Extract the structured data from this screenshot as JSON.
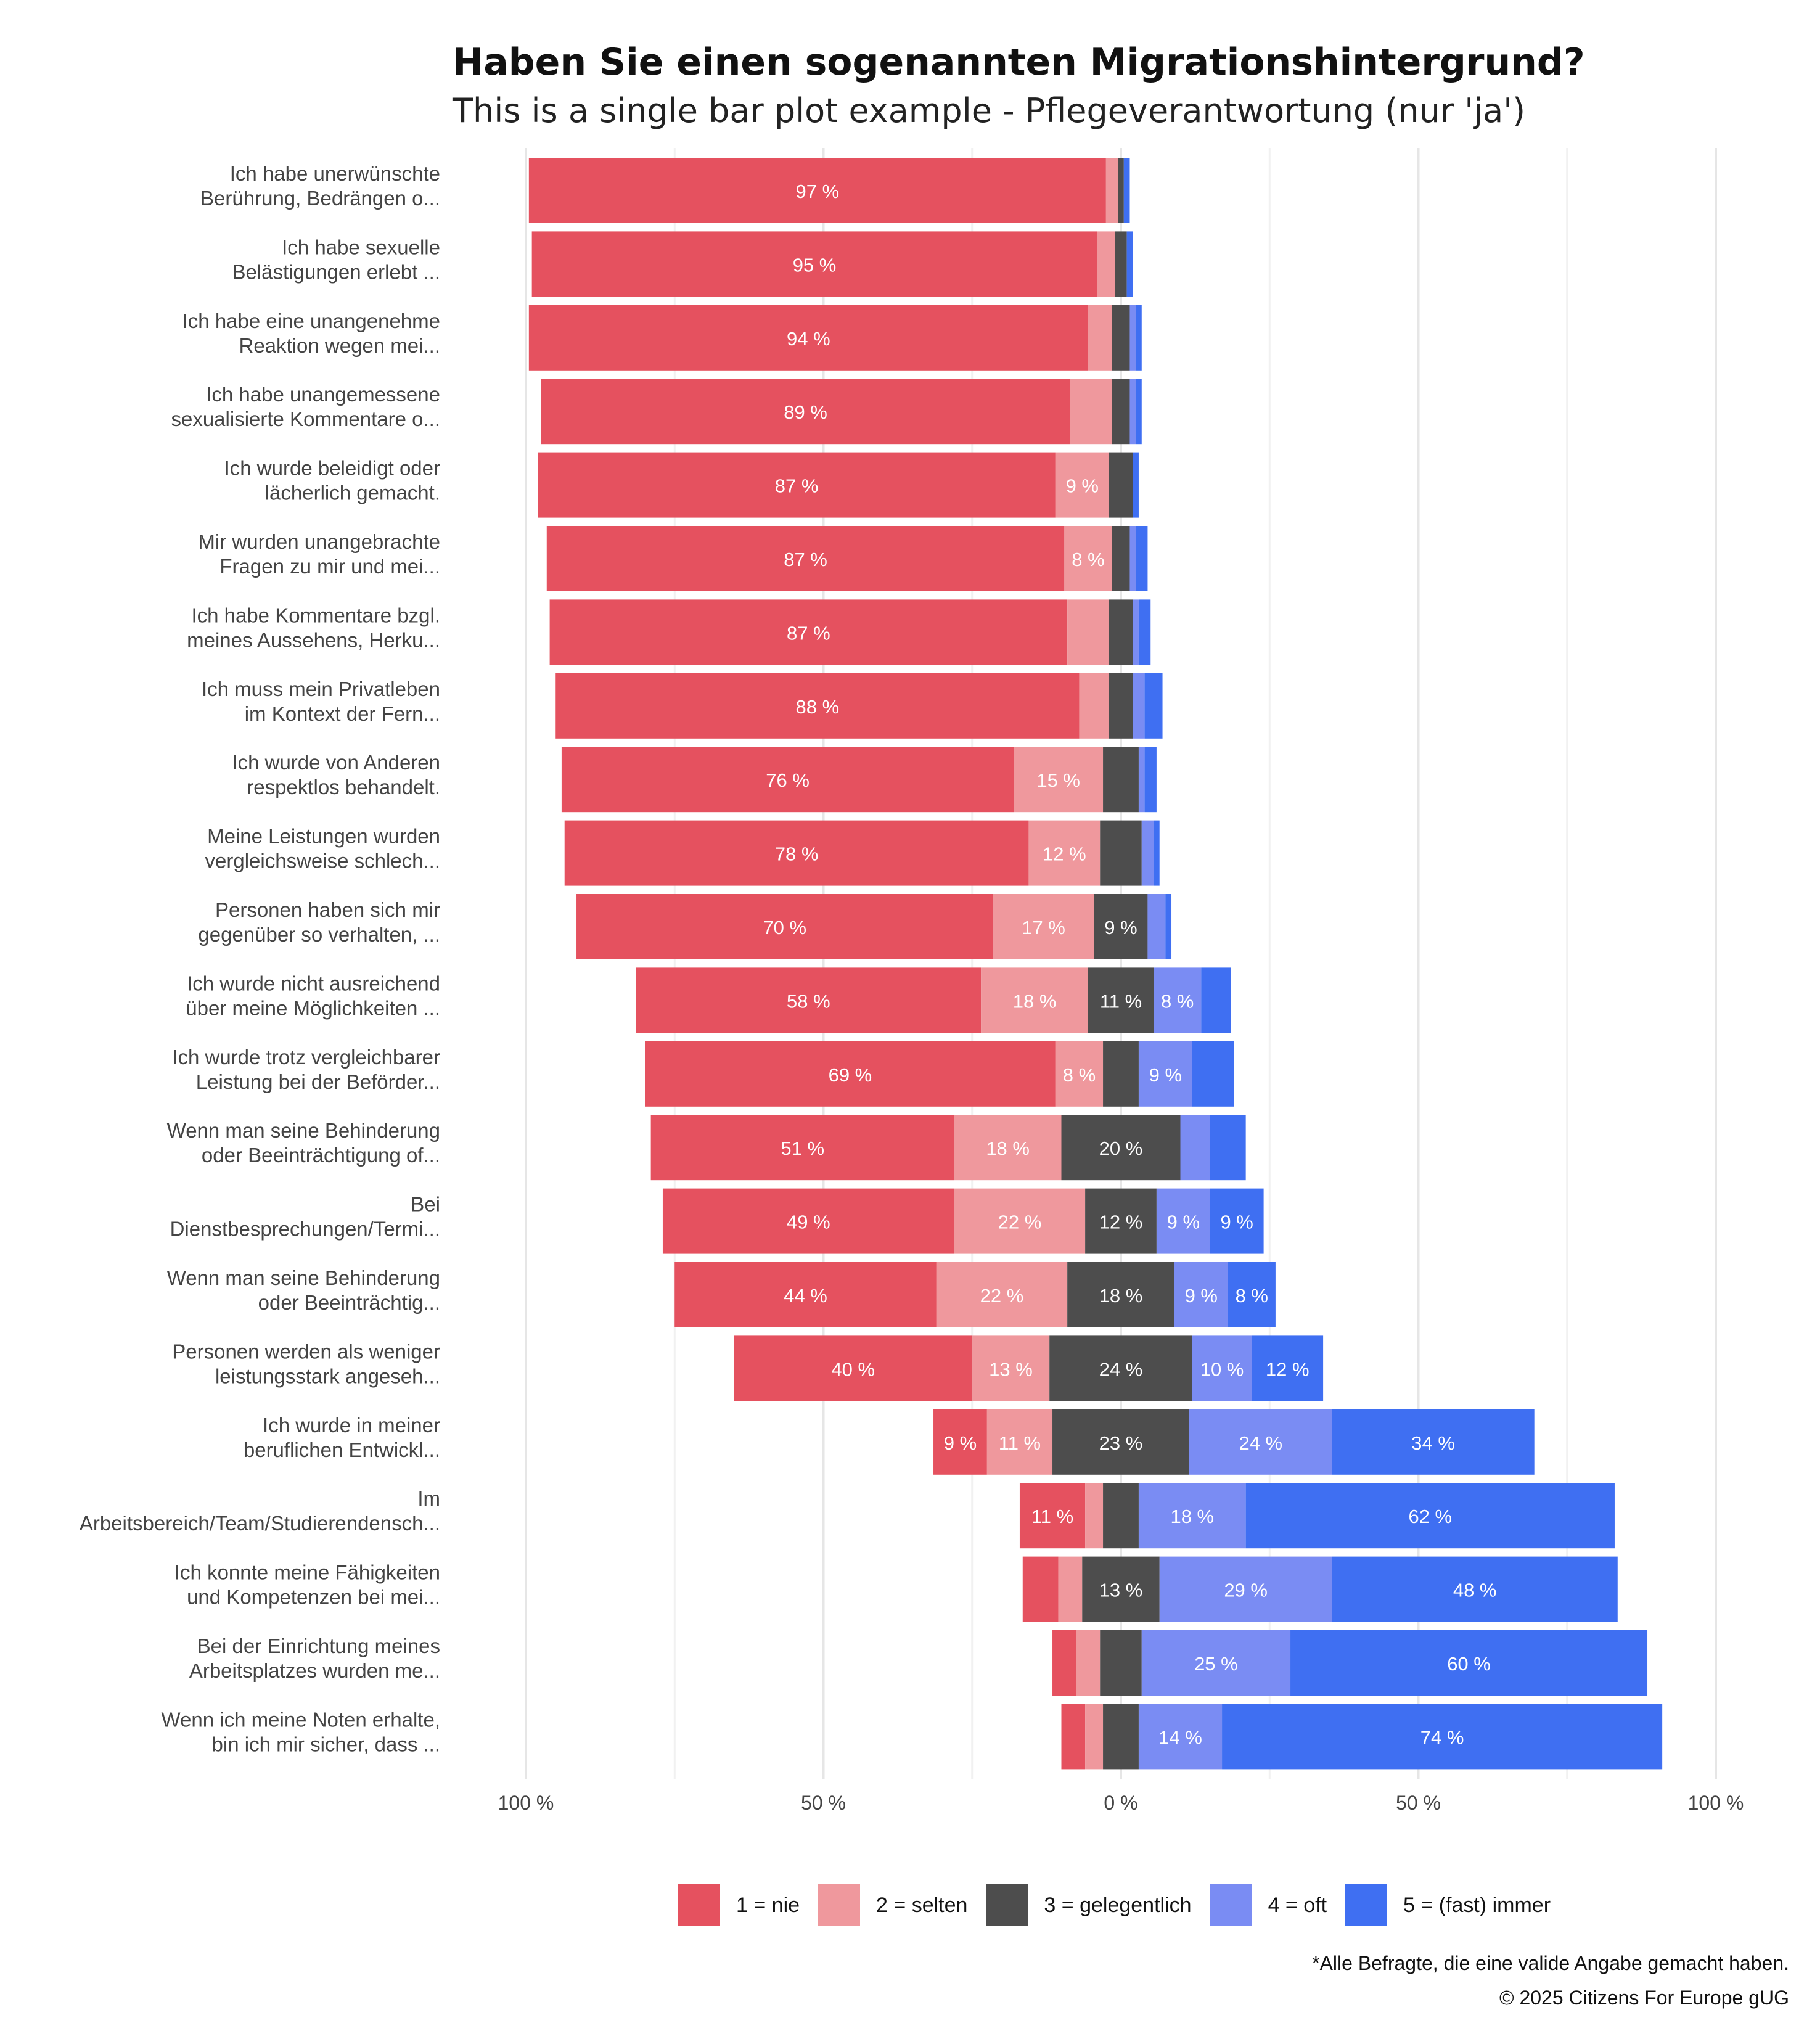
{
  "title": "Haben Sie einen sogenannten Migrationshintergrund?",
  "subtitle": "This is a single bar plot example - Pflegeverantwortung (nur 'ja')",
  "footnote": "*Alle Befragte, die eine valide Angabe gemacht haben.",
  "copyright": "©  2025  Citizens For Europe gUG",
  "legend": [
    {
      "label": "1 =  nie",
      "color": "#e5515f"
    },
    {
      "label": "2 = selten",
      "color": "#ef989d"
    },
    {
      "label": "3 = gelegentlich",
      "color": "#4d4d4d"
    },
    {
      "label": "4 = oft",
      "color": "#7a8cf3"
    },
    {
      "label": "5 = (fast) immer",
      "color": "#3f6ff2"
    }
  ],
  "chart_data": {
    "type": "bar",
    "orientation": "horizontal",
    "stacking": "diverging",
    "title": "Haben Sie einen sogenannten Migrationshintergrund?",
    "subtitle": "This is a single bar plot example - Pflegeverantwortung (nur 'ja')",
    "x_ticks": [
      "100 %",
      "50 %",
      "0 %",
      "50 %",
      "100 %"
    ],
    "x_range": [
      -100,
      100
    ],
    "categories": [
      "Ich habe unerwünschte\nBerührung, Bedrängen o...",
      "Ich habe sexuelle\nBelästigungen erlebt ...",
      "Ich habe eine unangenehme\nReaktion wegen mei...",
      "Ich habe unangemessene\nsexualisierte Kommentare o...",
      "Ich wurde beleidigt oder\nlächerlich gemacht.",
      "Mir wurden unangebrachte\nFragen zu mir und mei...",
      "Ich habe Kommentare bzgl.\nmeines Aussehens, Herku...",
      "Ich muss mein Privatleben\nim Kontext der Fern...",
      "Ich wurde von Anderen\nrespektlos behandelt.",
      "Meine Leistungen wurden\nvergleichsweise schlech...",
      "Personen haben sich mir\ngegenüber so verhalten, ...",
      "Ich wurde nicht ausreichend\nüber meine Möglichkeiten ...",
      "Ich wurde trotz vergleichbarer\nLeistung bei der Beförder...",
      "Wenn man seine Behinderung\noder Beeinträchtigung of...",
      "Bei\nDienstbesprechungen/Termi...",
      "Wenn man seine Behinderung\noder Beeinträchtig...",
      "Personen werden als weniger\nleistungsstark angeseh...",
      "Ich wurde in meiner\nberuflichen Entwickl...",
      "Im\nArbeitsbereich/Team/Studierendensch...",
      "Ich konnte meine Fähigkeiten\nund Kompetenzen bei mei...",
      "Bei der Einrichtung meines\nArbeitsplatzes wurden me...",
      "Wenn ich meine Noten erhalte,\nbin ich mir sicher, dass ..."
    ],
    "series": [
      {
        "name": "1 =  nie",
        "color": "#e5515f",
        "values": [
          97,
          95,
          94,
          89,
          87,
          87,
          87,
          88,
          76,
          78,
          70,
          58,
          69,
          51,
          49,
          44,
          40,
          9,
          11,
          6,
          4,
          4
        ]
      },
      {
        "name": "2 = selten",
        "color": "#ef989d",
        "values": [
          2,
          3,
          4,
          7,
          9,
          8,
          7,
          5,
          15,
          12,
          17,
          18,
          8,
          18,
          22,
          22,
          13,
          11,
          3,
          4,
          4,
          3
        ]
      },
      {
        "name": "3 = gelegentlich",
        "color": "#4d4d4d",
        "values": [
          1,
          2,
          3,
          3,
          4,
          3,
          4,
          4,
          6,
          7,
          9,
          11,
          6,
          20,
          12,
          18,
          24,
          23,
          6,
          13,
          7,
          6
        ]
      },
      {
        "name": "4 = oft",
        "color": "#7a8cf3",
        "values": [
          0,
          0,
          1,
          1,
          0,
          1,
          1,
          2,
          1,
          2,
          3,
          8,
          9,
          5,
          9,
          9,
          10,
          24,
          18,
          29,
          25,
          14
        ]
      },
      {
        "name": "5 = (fast) immer",
        "color": "#3f6ff2",
        "values": [
          1,
          1,
          1,
          1,
          1,
          2,
          2,
          3,
          2,
          1,
          1,
          5,
          7,
          6,
          9,
          8,
          12,
          34,
          62,
          48,
          60,
          74
        ]
      }
    ]
  }
}
